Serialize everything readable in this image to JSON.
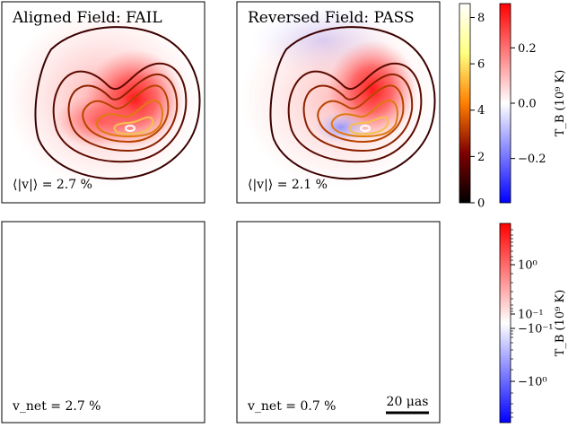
{
  "panels": {
    "top_left": {
      "title": "Aligned Field: FAIL",
      "annotation": "⟨|v|⟩ = 2.7 %"
    },
    "top_right": {
      "title": "Reversed Field: PASS",
      "annotation": "⟨|v|⟩ = 2.1 %"
    },
    "bottom_left": {
      "annotation": "v_net = 2.7 %"
    },
    "bottom_right": {
      "annotation": "v_net = 0.7 %",
      "scalebar_label": "20 μas"
    }
  },
  "colorbars": {
    "contour": {
      "ticks": [
        "0",
        "2",
        "4",
        "6",
        "8"
      ],
      "range": [
        0,
        8.6
      ],
      "colormap": "afmhot"
    },
    "diverging_top": {
      "ticks": [
        "−0.2",
        "0.0",
        "0.2"
      ],
      "range": [
        -0.36,
        0.36
      ],
      "label": "T_B (10⁹ K)",
      "colormap": "bwr"
    },
    "diverging_bottom": {
      "ticks": [
        "10⁰",
        "10⁻¹",
        "−10⁻¹",
        "−10⁰"
      ],
      "label": "T_B (10⁹ K)",
      "scale": "symlog",
      "colormap": "bwr"
    }
  },
  "chart_data": {
    "type": "heatmap",
    "panels": [
      {
        "title": "Aligned Field: FAIL",
        "layers": [
          "circular-polarization image",
          "total-intensity contours"
        ],
        "mean_abs_v_percent": 2.7
      },
      {
        "title": "Reversed Field: PASS",
        "layers": [
          "circular-polarization image",
          "total-intensity contours"
        ],
        "mean_abs_v_percent": 2.1
      },
      {
        "layers": [
          "circular-polarization image, symlog"
        ],
        "v_net_percent": 2.7
      },
      {
        "layers": [
          "circular-polarization image, symlog"
        ],
        "v_net_percent": 0.7,
        "scalebar_uas": 20
      }
    ],
    "contour_colorbar": {
      "ticks": [
        0,
        2,
        4,
        6,
        8
      ],
      "min": 0,
      "max": 8.6
    },
    "top_diverging_colorbar": {
      "ticks": [
        -0.2,
        0.0,
        0.2
      ],
      "min": -0.36,
      "max": 0.36
    },
    "bottom_diverging_colorbar": {
      "ticks": [
        "10^0",
        "10^-1",
        "-10^-1",
        "-10^0"
      ],
      "scale": "symlog"
    },
    "colors": {
      "positive": "#ff0000",
      "negative": "#0000ff",
      "contour_low": "#3a0000",
      "contour_high": "#ffe08a"
    }
  }
}
